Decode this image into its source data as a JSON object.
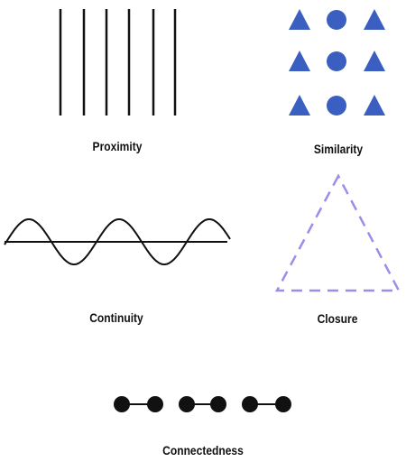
{
  "principles": [
    {
      "id": "proximity",
      "label": "Proximity",
      "line_count": 6
    },
    {
      "id": "similarity",
      "label": "Similarity",
      "grid_rows": 3,
      "grid_pattern": [
        "triangle",
        "circle",
        "triangle"
      ]
    },
    {
      "id": "continuity",
      "label": "Continuity",
      "wave_cycles": 3
    },
    {
      "id": "closure",
      "label": "Closure",
      "shape": "dashed-triangle"
    },
    {
      "id": "connectedness",
      "label": "Connectedness",
      "connected_pairs": 3
    }
  ],
  "colors": {
    "line": "#111111",
    "similarity_shapes": "#3b5fc0",
    "closure_dash": "#9a8ee8",
    "dots": "#111111"
  }
}
